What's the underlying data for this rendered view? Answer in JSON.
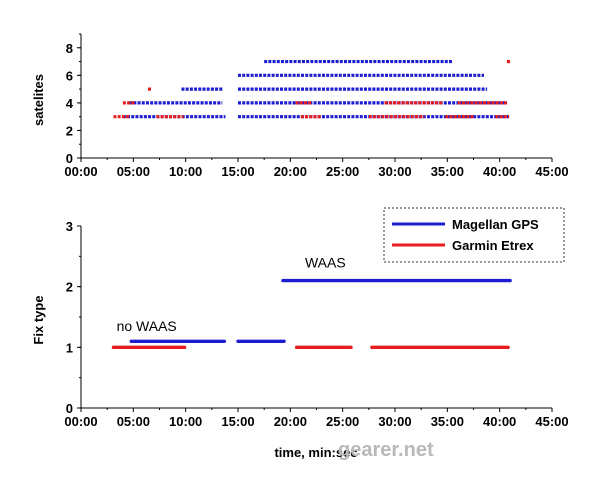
{
  "watermark": "gearer.net",
  "chart_data": [
    {
      "type": "scatter",
      "title": "",
      "xlabel": "",
      "ylabel": "satelites",
      "x_ticks": [
        "00:00",
        "05:00",
        "10:00",
        "15:00",
        "20:00",
        "25:00",
        "30:00",
        "35:00",
        "40:00",
        "45:00"
      ],
      "xlim_minutes": [
        0,
        45
      ],
      "ylim": [
        0,
        9
      ],
      "y_ticks": [
        "0",
        "2",
        "4",
        "6",
        "8"
      ],
      "grid": false,
      "series": [
        {
          "color": "#1c1cd0",
          "segments": [
            {
              "y": 3,
              "from": 4.0,
              "to": 13.8
            },
            {
              "y": 4,
              "from": 4.6,
              "to": 13.5
            },
            {
              "y": 5,
              "from": 9.6,
              "to": 13.5
            },
            {
              "y": 3,
              "from": 15.0,
              "to": 40.9
            },
            {
              "y": 4,
              "from": 15.0,
              "to": 40.5
            },
            {
              "y": 5,
              "from": 15.0,
              "to": 38.8
            },
            {
              "y": 6,
              "from": 15.0,
              "to": 38.5
            },
            {
              "y": 7,
              "from": 17.5,
              "to": 35.5
            }
          ]
        },
        {
          "color": "#e81c1c",
          "segments": [
            {
              "y": 3,
              "from": 3.1,
              "to": 4.6
            },
            {
              "y": 4,
              "from": 4.0,
              "to": 5.1
            },
            {
              "y": 5,
              "from": 6.4,
              "to": 6.8
            },
            {
              "y": 3,
              "from": 7.2,
              "to": 9.8
            },
            {
              "y": 3,
              "from": 21.0,
              "to": 23.0
            },
            {
              "y": 4,
              "from": 20.5,
              "to": 22.0
            },
            {
              "y": 3,
              "from": 27.5,
              "to": 32.8
            },
            {
              "y": 4,
              "from": 29.0,
              "to": 34.5
            },
            {
              "y": 3,
              "from": 34.8,
              "to": 37.5
            },
            {
              "y": 4,
              "from": 36.0,
              "to": 40.8
            },
            {
              "y": 3,
              "from": 39.6,
              "to": 40.9
            },
            {
              "y": 7,
              "from": 40.7,
              "to": 41.0
            }
          ]
        }
      ]
    },
    {
      "type": "line",
      "title": "",
      "xlabel": "time, min:sec",
      "ylabel": "Fix type",
      "x_ticks": [
        "00:00",
        "05:00",
        "10:00",
        "15:00",
        "20:00",
        "25:00",
        "30:00",
        "35:00",
        "40:00",
        "45:00"
      ],
      "xlim_minutes": [
        0,
        45
      ],
      "ylim": [
        0,
        3
      ],
      "y_ticks": [
        "0",
        "1",
        "2",
        "3"
      ],
      "grid": false,
      "legend_position": "top-right",
      "annotations": [
        {
          "text": "no WAAS",
          "x_minutes": 3.4,
          "y": 1.2
        },
        {
          "text": "WAAS",
          "x_minutes": 21.4,
          "y": 2.25
        }
      ],
      "series": [
        {
          "name": "Magellan GPS",
          "color": "#1c1cd0",
          "segments": [
            {
              "y": 1.1,
              "from": 4.8,
              "to": 13.7
            },
            {
              "y": 1.1,
              "from": 15.0,
              "to": 19.4
            },
            {
              "y": 2.1,
              "from": 19.3,
              "to": 41.0
            }
          ]
        },
        {
          "name": "Garmin Etrex",
          "color": "#e81c1c",
          "segments": [
            {
              "y": 1.0,
              "from": 3.1,
              "to": 9.9
            },
            {
              "y": 1.0,
              "from": 20.6,
              "to": 25.8
            },
            {
              "y": 1.0,
              "from": 27.8,
              "to": 40.8
            }
          ]
        }
      ]
    }
  ]
}
